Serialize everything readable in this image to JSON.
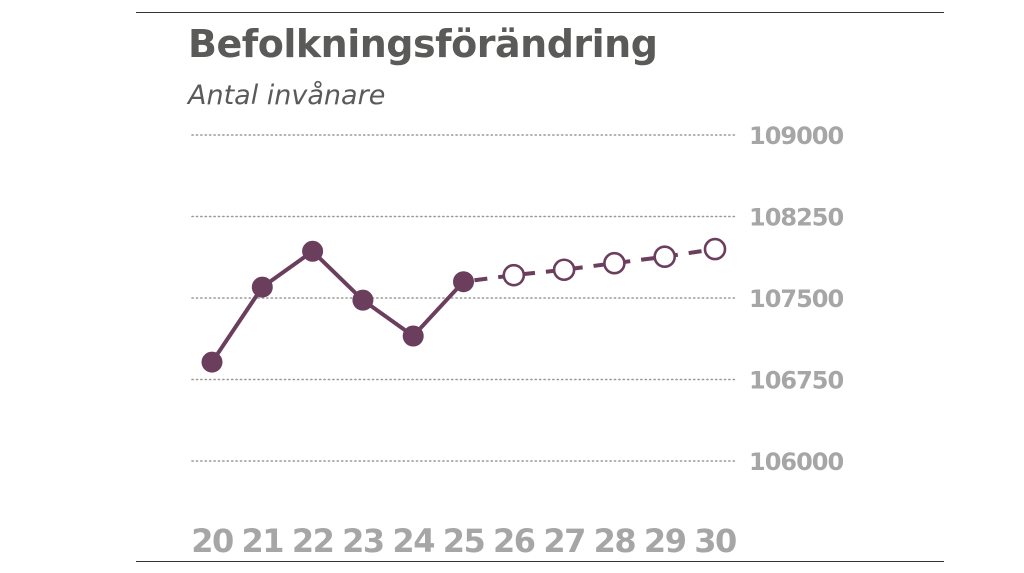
{
  "title": "Befolkningsförändring",
  "subtitle": "Antal invånare",
  "chart_data": {
    "type": "line",
    "title": "Befolkningsförändring",
    "subtitle": "Antal invånare",
    "xlabel": "",
    "ylabel": "",
    "x": [
      "20",
      "21",
      "22",
      "23",
      "24",
      "25",
      "26",
      "27",
      "28",
      "29",
      "30"
    ],
    "y_ticks": [
      "109000",
      "108250",
      "107500",
      "106750",
      "106000"
    ],
    "ylim": [
      106000,
      109000
    ],
    "grid": "horizontal dotted",
    "y_axis_position": "right",
    "line_color": "#6b3e5e",
    "marker_fill_open": "#ffffff",
    "series": [
      {
        "style": "solid line, filled markers",
        "x": [
          "20",
          "21",
          "22",
          "23",
          "24",
          "25"
        ],
        "values": [
          106910,
          107600,
          107930,
          107480,
          107150,
          107650
        ]
      },
      {
        "style": "dashed line, open markers",
        "x": [
          "26",
          "27",
          "28",
          "29",
          "30"
        ],
        "values": [
          107710,
          107760,
          107820,
          107880,
          107950
        ]
      }
    ]
  }
}
